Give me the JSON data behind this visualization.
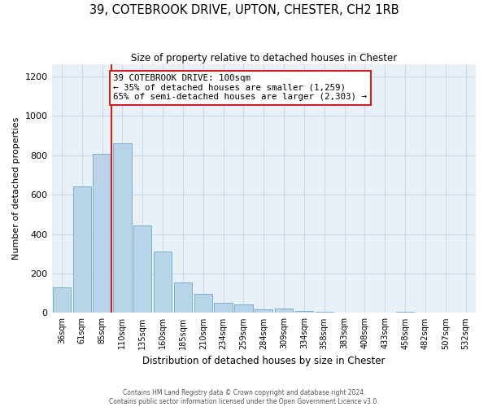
{
  "title": "39, COTEBROOK DRIVE, UPTON, CHESTER, CH2 1RB",
  "subtitle": "Size of property relative to detached houses in Chester",
  "xlabel": "Distribution of detached houses by size in Chester",
  "ylabel": "Number of detached properties",
  "bar_color": "#b8d4e8",
  "bar_edge_color": "#7aaed0",
  "categories": [
    "36sqm",
    "61sqm",
    "85sqm",
    "110sqm",
    "135sqm",
    "160sqm",
    "185sqm",
    "210sqm",
    "234sqm",
    "259sqm",
    "284sqm",
    "309sqm",
    "334sqm",
    "358sqm",
    "383sqm",
    "408sqm",
    "433sqm",
    "458sqm",
    "482sqm",
    "507sqm",
    "532sqm"
  ],
  "values": [
    130,
    640,
    805,
    860,
    445,
    310,
    155,
    95,
    52,
    42,
    18,
    22,
    10,
    5,
    0,
    0,
    0,
    5,
    0,
    0,
    2
  ],
  "ylim": [
    0,
    1260
  ],
  "yticks": [
    0,
    200,
    400,
    600,
    800,
    1000,
    1200
  ],
  "property_line_idx": 2,
  "annotation_text": "39 COTEBROOK DRIVE: 100sqm\n← 35% of detached houses are smaller (1,259)\n65% of semi-detached houses are larger (2,303) →",
  "annotation_box_color": "#ffffff",
  "annotation_box_edge_color": "#cc2222",
  "footer_line1": "Contains HM Land Registry data © Crown copyright and database right 2024.",
  "footer_line2": "Contains public sector information licensed under the Open Government Licence v3.0.",
  "background_color": "#ffffff",
  "plot_bg_color": "#e8f0f8",
  "grid_color": "#c8d8e8"
}
